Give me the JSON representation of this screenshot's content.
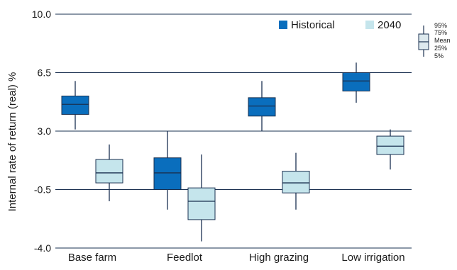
{
  "chart_data": {
    "type": "boxplot",
    "ylabel": "Internal rate of return (real) %",
    "xlabel": "",
    "ylim": [
      -4.0,
      10.0
    ],
    "y_ticks": [
      "-4.0",
      "-0.5",
      "3.0",
      "6.5",
      "10.0"
    ],
    "y_tick_values": [
      -4.0,
      -0.5,
      3.0,
      6.5,
      10.0
    ],
    "grid": "horizontal",
    "categories": [
      "Base farm",
      "Feedlot",
      "High grazing",
      "Low irrigation"
    ],
    "legend_position": "top-right",
    "series": [
      {
        "name": "Historical",
        "color": "#0a6ebd",
        "boxes": [
          {
            "p5": 3.1,
            "p25": 4.0,
            "mean": 4.6,
            "p75": 5.1,
            "p95": 6.0
          },
          {
            "p5": -1.7,
            "p25": -0.5,
            "mean": 0.5,
            "p75": 1.4,
            "p95": 3.0
          },
          {
            "p5": 3.0,
            "p25": 3.9,
            "mean": 4.5,
            "p75": 5.0,
            "p95": 6.0
          },
          {
            "p5": 4.7,
            "p25": 5.4,
            "mean": 6.0,
            "p75": 6.5,
            "p95": 7.1
          }
        ]
      },
      {
        "name": "2040",
        "color": "#c5e5ec",
        "boxes": [
          {
            "p5": -1.2,
            "p25": -0.1,
            "mean": 0.5,
            "p75": 1.3,
            "p95": 2.2
          },
          {
            "p5": -3.6,
            "p25": -2.3,
            "mean": -1.2,
            "p75": -0.4,
            "p95": 1.6
          },
          {
            "p5": -1.7,
            "p25": -0.7,
            "mean": -0.1,
            "p75": 0.6,
            "p95": 1.7
          },
          {
            "p5": 0.7,
            "p25": 1.6,
            "mean": 2.1,
            "p75": 2.7,
            "p95": 3.1
          }
        ]
      }
    ],
    "key_labels": [
      "95%",
      "75%",
      "Mean",
      "25%",
      "5%"
    ]
  },
  "colors": {
    "axis": "#1a3050",
    "whisker": "#1a3050"
  }
}
